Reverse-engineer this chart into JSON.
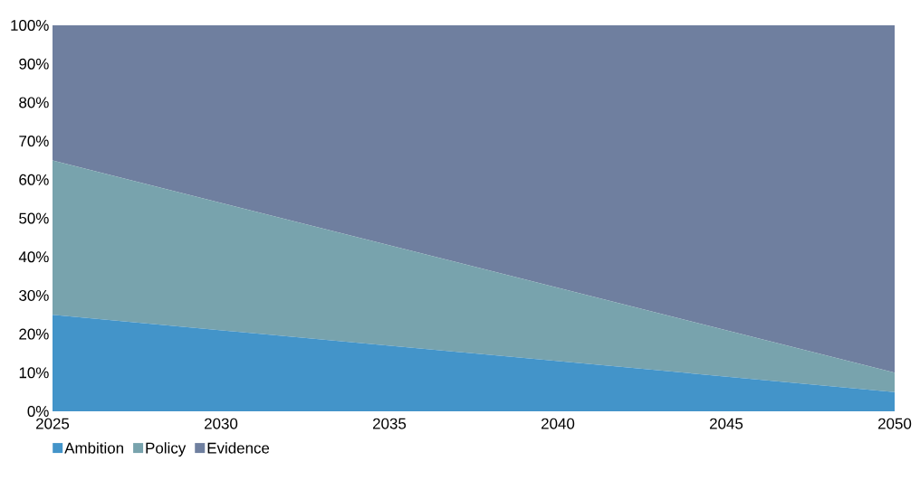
{
  "chart_data": {
    "type": "area",
    "stacked": true,
    "x": [
      2025,
      2050
    ],
    "series": [
      {
        "name": "Ambition",
        "color": "#4394c9",
        "values": [
          25,
          5
        ]
      },
      {
        "name": "Policy",
        "color": "#78a3ad",
        "values": [
          40,
          5
        ]
      },
      {
        "name": "Evidence",
        "color": "#6f7f9f",
        "values": [
          35,
          90
        ]
      }
    ],
    "xlim": [
      2025,
      2050
    ],
    "xticks": [
      2025,
      2030,
      2035,
      2040,
      2045,
      2050
    ],
    "ylim": [
      0,
      100
    ],
    "yticks": [
      {
        "value": 0,
        "label": "0%"
      },
      {
        "value": 10,
        "label": "10%"
      },
      {
        "value": 20,
        "label": "20%"
      },
      {
        "value": 30,
        "label": "30%"
      },
      {
        "value": 40,
        "label": "40%"
      },
      {
        "value": 50,
        "label": "50%"
      },
      {
        "value": 60,
        "label": "60%"
      },
      {
        "value": 70,
        "label": "70%"
      },
      {
        "value": 80,
        "label": "80%"
      },
      {
        "value": 90,
        "label": "90%"
      },
      {
        "value": 100,
        "label": "100%"
      }
    ],
    "legend": "bottom left"
  }
}
